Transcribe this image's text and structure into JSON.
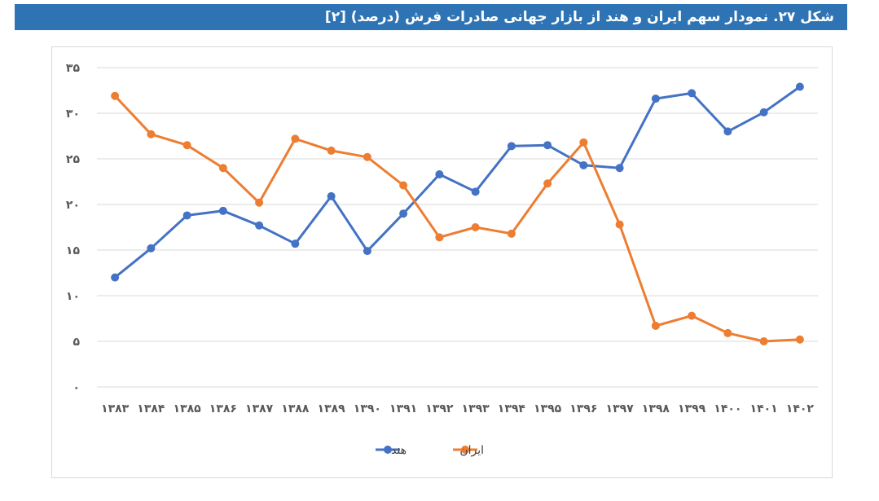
{
  "title": "شکل ۲۷. نمودار سهم ایران و هند از بازار جهانی صادرات فرش (درصد) [۲]",
  "colors": {
    "title_bg": "#2e74b5",
    "india": "#4472c4",
    "iran": "#ed7d31",
    "grid": "#d9d9d9"
  },
  "chart_data": {
    "type": "line",
    "categories": [
      "۱۳۸۳",
      "۱۳۸۴",
      "۱۳۸۵",
      "۱۳۸۶",
      "۱۳۸۷",
      "۱۳۸۸",
      "۱۳۸۹",
      "۱۳۹۰",
      "۱۳۹۱",
      "۱۳۹۲",
      "۱۳۹۳",
      "۱۳۹۴",
      "۱۳۹۵",
      "۱۳۹۶",
      "۱۳۹۷",
      "۱۳۹۸",
      "۱۳۹۹",
      "۱۴۰۰",
      "۱۴۰۱",
      "۱۴۰۲"
    ],
    "series": [
      {
        "name": "هند",
        "color": "#4472c4",
        "values": [
          12.0,
          15.2,
          18.8,
          19.3,
          17.7,
          15.7,
          20.9,
          14.9,
          19.0,
          23.3,
          21.4,
          26.4,
          26.5,
          24.3,
          24.0,
          31.6,
          32.2,
          28.0,
          30.1,
          32.9
        ]
      },
      {
        "name": "ایران",
        "color": "#ed7d31",
        "values": [
          31.9,
          27.7,
          26.5,
          24.0,
          20.2,
          27.2,
          25.9,
          25.2,
          22.1,
          16.4,
          17.5,
          16.8,
          22.3,
          26.8,
          17.8,
          6.7,
          7.8,
          5.9,
          5.0,
          5.2
        ]
      }
    ],
    "ylim": [
      0,
      35
    ],
    "yticks": [
      "۰",
      "۵",
      "۱۰",
      "۱۵",
      "۲۰",
      "۲۵",
      "۳۰",
      "۳۵"
    ],
    "ytick_values": [
      0,
      5,
      10,
      15,
      20,
      25,
      30,
      35
    ],
    "grid": true,
    "legend_position": "bottom"
  }
}
